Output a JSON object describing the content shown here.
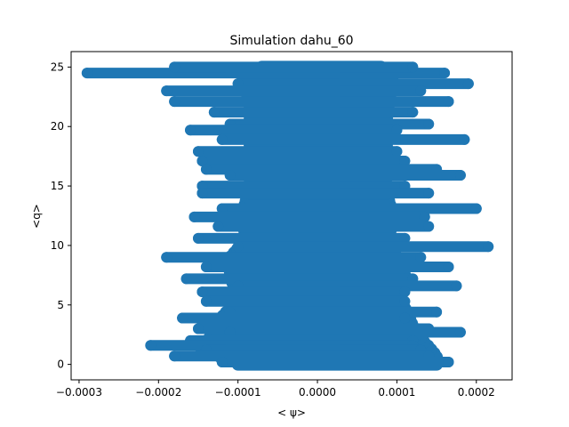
{
  "chart_data": {
    "type": "scatter",
    "title": "Simulation dahu_60",
    "xlabel": "< ψ>",
    "ylabel": "<q>",
    "xlim": [
      -0.00031,
      0.000245
    ],
    "ylim": [
      -1.3,
      26.3
    ],
    "grid": false,
    "legend": "none",
    "color": "#1f77b4",
    "xticks": [
      {
        "value": -0.0003,
        "label": "−0.0003"
      },
      {
        "value": -0.0002,
        "label": "−0.0002"
      },
      {
        "value": -0.0001,
        "label": "−0.0001"
      },
      {
        "value": 0.0,
        "label": "0.0000"
      },
      {
        "value": 0.0001,
        "label": "0.0001"
      },
      {
        "value": 0.0002,
        "label": "0.0002"
      }
    ],
    "yticks": [
      {
        "value": 0,
        "label": "0"
      },
      {
        "value": 5,
        "label": "5"
      },
      {
        "value": 10,
        "label": "10"
      },
      {
        "value": 15,
        "label": "15"
      },
      {
        "value": 20,
        "label": "20"
      },
      {
        "value": 25,
        "label": "25"
      }
    ],
    "band_extents": [
      {
        "q": 0.0,
        "xmin": -0.0001,
        "xmax": 0.00015
      },
      {
        "q": 0.7,
        "xmin": -0.000125,
        "xmax": 0.00015
      },
      {
        "q": 1.5,
        "xmin": -0.00015,
        "xmax": 0.00014
      },
      {
        "q": 2.5,
        "xmin": -0.00013,
        "xmax": 0.000125
      },
      {
        "q": 4.0,
        "xmin": -0.00012,
        "xmax": 0.000115
      },
      {
        "q": 5.5,
        "xmin": -0.0001,
        "xmax": 0.000105
      },
      {
        "q": 7.5,
        "xmin": -0.00011,
        "xmax": 0.00011
      },
      {
        "q": 9.0,
        "xmin": -0.00011,
        "xmax": 0.0001
      },
      {
        "q": 10.5,
        "xmin": -9e-05,
        "xmax": 9e-05
      },
      {
        "q": 12.5,
        "xmin": -9.5e-05,
        "xmax": 9.5e-05
      },
      {
        "q": 15.0,
        "xmin": -8.5e-05,
        "xmax": 8.5e-05
      },
      {
        "q": 17.0,
        "xmin": -8.5e-05,
        "xmax": 9e-05
      },
      {
        "q": 19.5,
        "xmin": -8.5e-05,
        "xmax": 8.5e-05
      },
      {
        "q": 22.0,
        "xmin": -8.5e-05,
        "xmax": 9e-05
      },
      {
        "q": 24.0,
        "xmin": -9.5e-05,
        "xmax": 9.5e-05
      },
      {
        "q": 25.0,
        "xmin": -7e-05,
        "xmax": 8e-05
      }
    ],
    "strands": [
      {
        "q": 24.5,
        "xmin": -0.00029,
        "xmax": 0.00016
      },
      {
        "q": 25.0,
        "xmin": -0.00018,
        "xmax": 0.00012
      },
      {
        "q": 23.6,
        "xmin": -0.0001,
        "xmax": 0.00019
      },
      {
        "q": 23.0,
        "xmin": -0.00019,
        "xmax": 0.00013
      },
      {
        "q": 22.1,
        "xmin": -0.00018,
        "xmax": 0.000165
      },
      {
        "q": 21.2,
        "xmin": -0.00013,
        "xmax": 0.00012
      },
      {
        "q": 20.2,
        "xmin": -0.00011,
        "xmax": 0.00014
      },
      {
        "q": 19.7,
        "xmin": -0.00016,
        "xmax": 0.0001
      },
      {
        "q": 18.9,
        "xmin": -0.00012,
        "xmax": 0.000185
      },
      {
        "q": 17.9,
        "xmin": -0.00015,
        "xmax": 0.0001
      },
      {
        "q": 17.1,
        "xmin": -0.000145,
        "xmax": 0.00011
      },
      {
        "q": 16.4,
        "xmin": -0.00014,
        "xmax": 0.00015
      },
      {
        "q": 15.9,
        "xmin": -0.00011,
        "xmax": 0.00018
      },
      {
        "q": 15.0,
        "xmin": -0.000145,
        "xmax": 0.00011
      },
      {
        "q": 14.4,
        "xmin": -0.000145,
        "xmax": 0.00014
      },
      {
        "q": 13.1,
        "xmin": -0.00012,
        "xmax": 0.0002
      },
      {
        "q": 12.4,
        "xmin": -0.000155,
        "xmax": 0.000135
      },
      {
        "q": 11.6,
        "xmin": -0.000125,
        "xmax": 0.00014
      },
      {
        "q": 10.6,
        "xmin": -0.00015,
        "xmax": 0.00011
      },
      {
        "q": 9.9,
        "xmin": -0.0001,
        "xmax": 0.000215
      },
      {
        "q": 9.0,
        "xmin": -0.00019,
        "xmax": 0.00013
      },
      {
        "q": 8.2,
        "xmin": -0.00014,
        "xmax": 0.000165
      },
      {
        "q": 7.2,
        "xmin": -0.000165,
        "xmax": 0.00012
      },
      {
        "q": 6.6,
        "xmin": -0.0001,
        "xmax": 0.000175
      },
      {
        "q": 6.1,
        "xmin": -0.000145,
        "xmax": 0.00011
      },
      {
        "q": 5.3,
        "xmin": -0.00014,
        "xmax": 0.00011
      },
      {
        "q": 4.4,
        "xmin": -0.00011,
        "xmax": 0.00015
      },
      {
        "q": 3.9,
        "xmin": -0.00017,
        "xmax": 0.00011
      },
      {
        "q": 3.0,
        "xmin": -0.00015,
        "xmax": 0.00014
      },
      {
        "q": 2.7,
        "xmin": -0.00011,
        "xmax": 0.00018
      },
      {
        "q": 2.0,
        "xmin": -0.00016,
        "xmax": 0.00012
      },
      {
        "q": 1.6,
        "xmin": -0.00021,
        "xmax": 0.00012
      },
      {
        "q": 1.2,
        "xmin": -0.00014,
        "xmax": 0.00013
      },
      {
        "q": 0.7,
        "xmin": -0.00018,
        "xmax": 0.00014
      },
      {
        "q": 0.2,
        "xmin": -0.00012,
        "xmax": 0.000165
      }
    ]
  }
}
